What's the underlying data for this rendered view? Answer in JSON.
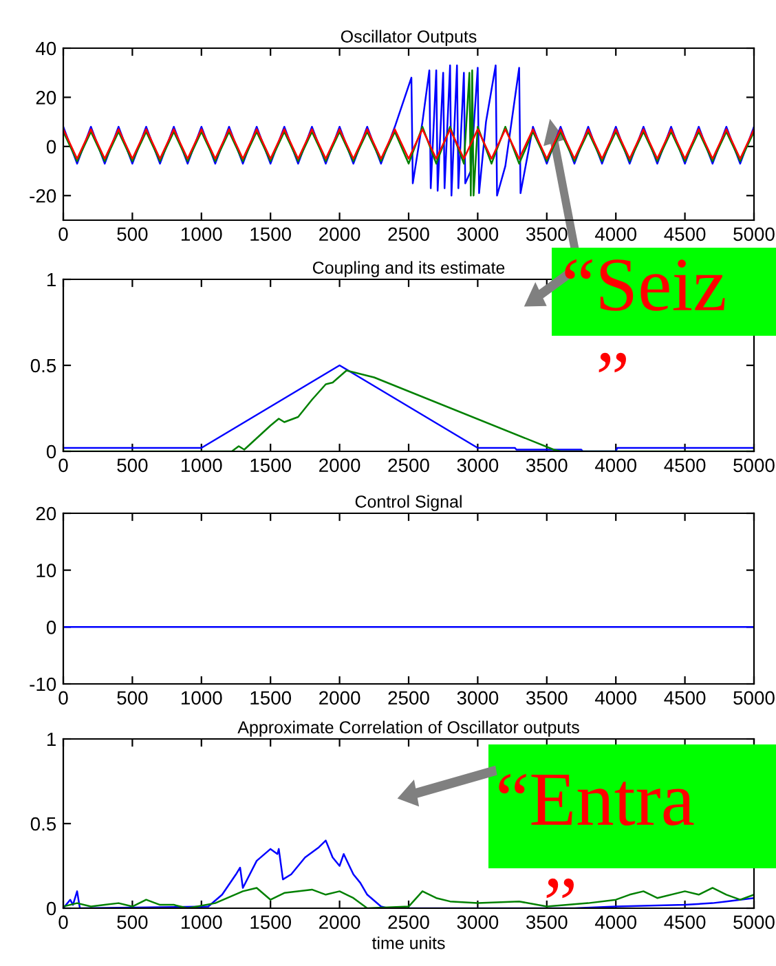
{
  "chart_data": [
    {
      "type": "line",
      "title": "Oscillator Outputs",
      "xlim": [
        0,
        5000
      ],
      "xticks": [
        0,
        500,
        1000,
        1500,
        2000,
        2500,
        3000,
        3500,
        4000,
        4500,
        5000
      ],
      "ylim": [
        -30,
        40
      ],
      "yticks": [
        -20,
        0,
        20,
        40
      ],
      "grid": false,
      "legend": false,
      "series": [
        {
          "color": "#0000ff",
          "x": [
            0,
            100,
            200,
            300,
            400,
            500,
            600,
            700,
            800,
            900,
            1000,
            1100,
            1200,
            1300,
            1400,
            1500,
            1600,
            1700,
            1800,
            1900,
            2000,
            2100,
            2200,
            2300,
            2400,
            2520,
            2530,
            2600,
            2650,
            2660,
            2700,
            2710,
            2750,
            2760,
            2800,
            2810,
            2850,
            2860,
            2900,
            2910,
            2950,
            3000,
            3010,
            3060,
            3130,
            3140,
            3200,
            3300,
            3310,
            3400,
            3500,
            3600,
            3700,
            3800,
            3900,
            4000,
            4100,
            4200,
            4300,
            4400,
            4500,
            4600,
            4700,
            4800,
            4900,
            5000
          ],
          "values": [
            8,
            -7,
            8,
            -7,
            8,
            -7,
            8,
            -7,
            8,
            -7,
            8,
            -7,
            8,
            -7,
            8,
            -7,
            8,
            -7,
            8,
            -7,
            8,
            -7,
            8,
            -7,
            8,
            28,
            -15,
            10,
            31,
            -17,
            31,
            -18,
            30,
            -17,
            33,
            -20,
            33,
            -17,
            30,
            -15,
            -10,
            32,
            -19,
            10,
            33,
            -20,
            -8,
            32,
            -19,
            8,
            -7,
            8,
            -7,
            8,
            -7,
            8,
            -7,
            8,
            -7,
            8,
            -7,
            8,
            -7,
            8,
            -7,
            8
          ]
        },
        {
          "color": "#008000",
          "x": [
            0,
            100,
            200,
            300,
            400,
            500,
            600,
            700,
            800,
            900,
            1000,
            1100,
            1200,
            1300,
            1400,
            1500,
            1600,
            1700,
            1800,
            1900,
            2000,
            2100,
            2200,
            2300,
            2400,
            2500,
            2600,
            2700,
            2800,
            2900,
            2940,
            2950,
            2960,
            2970,
            3000,
            3100,
            3200,
            3300,
            3400,
            3500,
            3600,
            3700,
            3800,
            3900,
            4000,
            4100,
            4200,
            4300,
            4400,
            4500,
            4600,
            4700,
            4800,
            4900,
            5000
          ],
          "values": [
            6,
            -6,
            6,
            -6,
            6,
            -6,
            6,
            -6,
            6,
            -6,
            6,
            -6,
            6,
            -6,
            6,
            -6,
            6,
            -6,
            6,
            -6,
            6,
            -6,
            6,
            -6,
            6,
            -7,
            8,
            -7,
            8,
            -7,
            30,
            -20,
            31,
            -20,
            8,
            -7,
            8,
            -7,
            6,
            -6,
            6,
            -6,
            6,
            -6,
            6,
            -6,
            6,
            -6,
            6,
            -6,
            6,
            -6,
            6,
            -6,
            6
          ]
        },
        {
          "color": "#ff0000",
          "x": [
            0,
            100,
            200,
            300,
            400,
            500,
            600,
            700,
            800,
            900,
            1000,
            1100,
            1200,
            1300,
            1400,
            1500,
            1600,
            1700,
            1800,
            1900,
            2000,
            2100,
            2200,
            2300,
            2400,
            2500,
            2600,
            2700,
            2800,
            2900,
            3000,
            3100,
            3200,
            3300,
            3400,
            3500,
            3600,
            3700,
            3800,
            3900,
            4000,
            4100,
            4200,
            4300,
            4400,
            4500,
            4600,
            4700,
            4800,
            4900,
            5000
          ],
          "values": [
            7,
            -5,
            7,
            -5,
            7,
            -5,
            7,
            -5,
            7,
            -5,
            7,
            -5,
            7,
            -5,
            7,
            -5,
            7,
            -5,
            7,
            -5,
            7,
            -5,
            7,
            -5,
            7,
            -5,
            7,
            -5,
            7,
            -5,
            7,
            -5,
            7,
            -5,
            7,
            -5,
            7,
            -5,
            7,
            -5,
            7,
            -5,
            7,
            -5,
            7,
            -5,
            7,
            -5,
            7,
            -5,
            7
          ]
        }
      ]
    },
    {
      "type": "line",
      "title": "Coupling and its estimate",
      "xlim": [
        0,
        5000
      ],
      "xticks": [
        0,
        500,
        1000,
        1500,
        2000,
        2500,
        3000,
        3500,
        4000,
        4500,
        5000
      ],
      "ylim": [
        0,
        1
      ],
      "yticks": [
        0,
        0.5,
        1
      ],
      "grid": false,
      "legend": false,
      "annotations": [
        "“Seiz",
        "”"
      ],
      "series": [
        {
          "color": "#0000ff",
          "x": [
            0,
            1000,
            2000,
            3000,
            3270,
            3280,
            3750,
            3760,
            4000,
            4010,
            5000
          ],
          "values": [
            0.02,
            0.02,
            0.5,
            0.02,
            0.02,
            0.01,
            0.01,
            0,
            0,
            0.02,
            0.02
          ]
        },
        {
          "color": "#008000",
          "x": [
            0,
            1220,
            1270,
            1310,
            1500,
            1560,
            1600,
            1700,
            1800,
            1900,
            1950,
            2050,
            2200,
            2250,
            3550,
            3600,
            5000
          ],
          "values": [
            0,
            0,
            0.03,
            0.01,
            0.15,
            0.19,
            0.17,
            0.2,
            0.3,
            0.39,
            0.4,
            0.47,
            0.44,
            0.43,
            0.01,
            0,
            0
          ]
        }
      ]
    },
    {
      "type": "line",
      "title": "Control Signal",
      "xlim": [
        0,
        5000
      ],
      "xticks": [
        0,
        500,
        1000,
        1500,
        2000,
        2500,
        3000,
        3500,
        4000,
        4500,
        5000
      ],
      "ylim": [
        -10,
        20
      ],
      "yticks": [
        -10,
        0,
        10,
        20
      ],
      "grid": false,
      "legend": false,
      "series": [
        {
          "color": "#0000ff",
          "x": [
            0,
            5000
          ],
          "values": [
            0,
            0
          ]
        }
      ]
    },
    {
      "type": "line",
      "title": "Approximate Correlation of Oscillator outputs",
      "xlabel": "time units",
      "xlim": [
        0,
        5000
      ],
      "xticks": [
        0,
        500,
        1000,
        1500,
        2000,
        2500,
        3000,
        3500,
        4000,
        4500,
        5000
      ],
      "ylim": [
        0,
        1
      ],
      "yticks": [
        0,
        0.5,
        1
      ],
      "grid": false,
      "legend": false,
      "annotations": [
        "“Entra",
        "”"
      ],
      "series": [
        {
          "color": "#0000ff",
          "x": [
            0,
            50,
            70,
            100,
            120,
            1050,
            1150,
            1250,
            1280,
            1300,
            1400,
            1500,
            1550,
            1560,
            1590,
            1650,
            1750,
            1850,
            1900,
            1950,
            2000,
            2030,
            2100,
            2150,
            2200,
            2300,
            2350,
            3700,
            4000,
            4500,
            4700,
            4800,
            5000
          ],
          "values": [
            0,
            0.05,
            0.02,
            0.1,
            0,
            0.01,
            0.08,
            0.2,
            0.24,
            0.12,
            0.28,
            0.35,
            0.32,
            0.35,
            0.17,
            0.2,
            0.3,
            0.36,
            0.4,
            0.3,
            0.25,
            0.32,
            0.2,
            0.15,
            0.08,
            0.01,
            0,
            0,
            0.01,
            0.02,
            0.03,
            0.04,
            0.06
          ]
        },
        {
          "color": "#008000",
          "x": [
            0,
            100,
            200,
            300,
            400,
            500,
            600,
            700,
            800,
            900,
            1100,
            1300,
            1400,
            1500,
            1600,
            1800,
            1900,
            2000,
            2100,
            2200,
            2500,
            2600,
            2700,
            2800,
            3000,
            3300,
            3500,
            3800,
            4000,
            4100,
            4200,
            4300,
            4500,
            4600,
            4700,
            4800,
            4900,
            5000
          ],
          "values": [
            0.01,
            0.03,
            0.01,
            0.02,
            0.03,
            0.01,
            0.05,
            0.02,
            0.02,
            0,
            0.03,
            0.1,
            0.12,
            0.05,
            0.09,
            0.11,
            0.08,
            0.1,
            0.06,
            0,
            0.01,
            0.1,
            0.06,
            0.04,
            0.03,
            0.04,
            0.01,
            0.03,
            0.05,
            0.08,
            0.1,
            0.06,
            0.1,
            0.08,
            0.12,
            0.08,
            0.05,
            0.08
          ]
        }
      ]
    }
  ]
}
